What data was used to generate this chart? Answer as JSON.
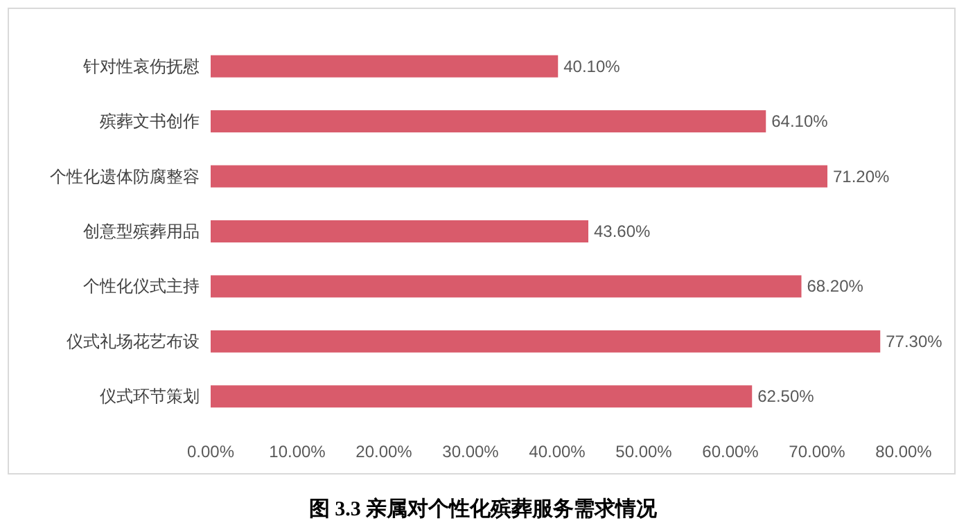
{
  "chart_data": {
    "type": "bar",
    "orientation": "horizontal",
    "title": "图 3.3 亲属对个性化殡葬服务需求情况",
    "categories": [
      "针对性哀伤抚慰",
      "殡葬文书创作",
      "个性化遗体防腐整容",
      "创意型殡葬用品",
      "个性化仪式主持",
      "仪式礼场花艺布设",
      "仪式环节策划"
    ],
    "values": [
      40.1,
      64.1,
      71.2,
      43.6,
      68.2,
      77.3,
      62.5
    ],
    "value_labels": [
      "40.10%",
      "64.10%",
      "71.20%",
      "43.60%",
      "68.20%",
      "77.30%",
      "62.50%"
    ],
    "color": "#d95b6b",
    "xlim": [
      0,
      80
    ],
    "xticks": [
      {
        "value": 0,
        "label": "0.00%"
      },
      {
        "value": 10,
        "label": "10.00%"
      },
      {
        "value": 20,
        "label": "20.00%"
      },
      {
        "value": 30,
        "label": "30.00%"
      },
      {
        "value": 40,
        "label": "40.00%"
      },
      {
        "value": 50,
        "label": "50.00%"
      },
      {
        "value": 60,
        "label": "60.00%"
      },
      {
        "value": 70,
        "label": "70.00%"
      },
      {
        "value": 80,
        "label": "80.00%"
      }
    ],
    "grid": false
  }
}
